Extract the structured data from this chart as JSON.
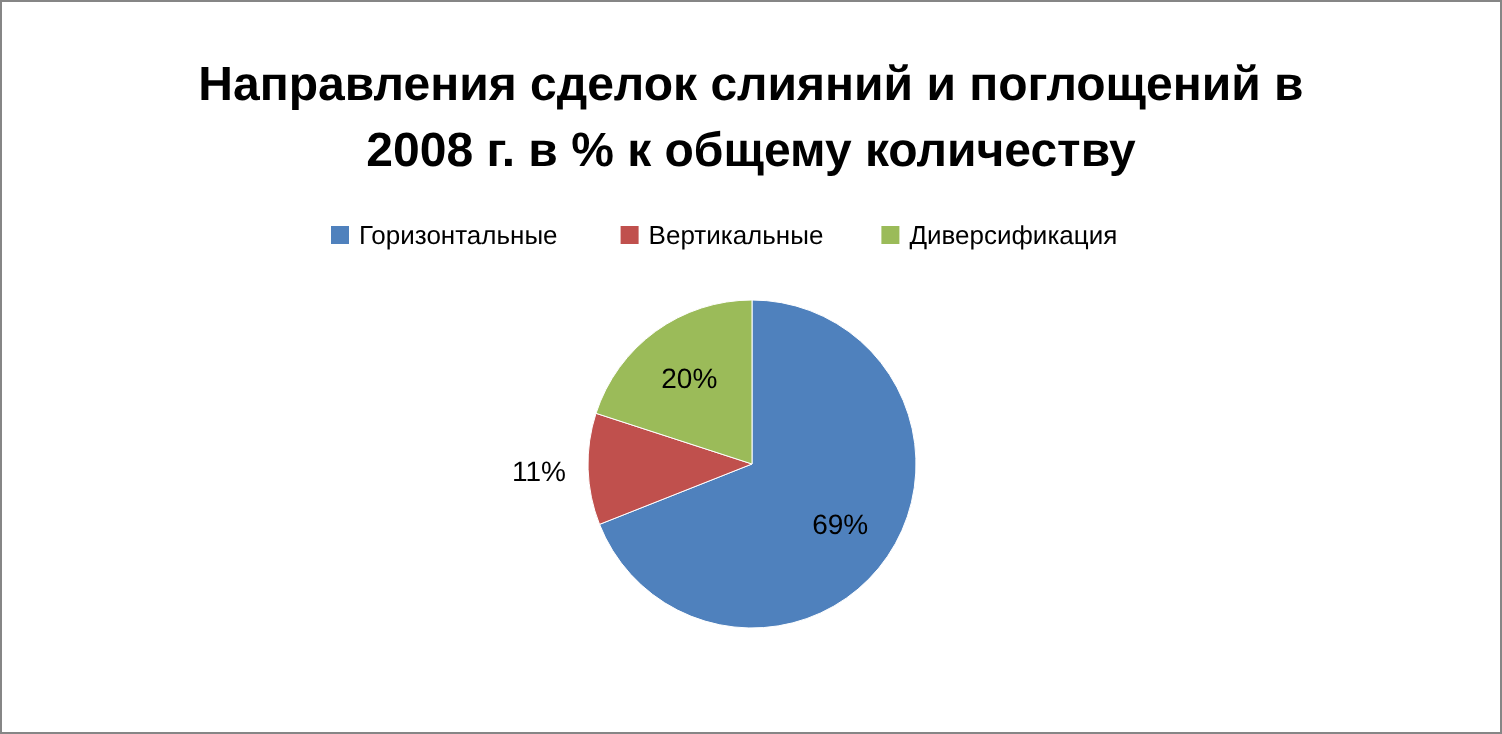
{
  "chart_data": {
    "type": "pie",
    "title": "Направления сделок слияний и поглощений в 2008 г. в % к общему количеству",
    "categories": [
      "Горизонтальные",
      "Вертикальные",
      "Диверсификация"
    ],
    "values": [
      69,
      11,
      20
    ],
    "colors": [
      "#4f81bd",
      "#c0504d",
      "#9bbb59"
    ],
    "value_labels": [
      "69%",
      "11%",
      "20%"
    ],
    "legend": "top"
  }
}
